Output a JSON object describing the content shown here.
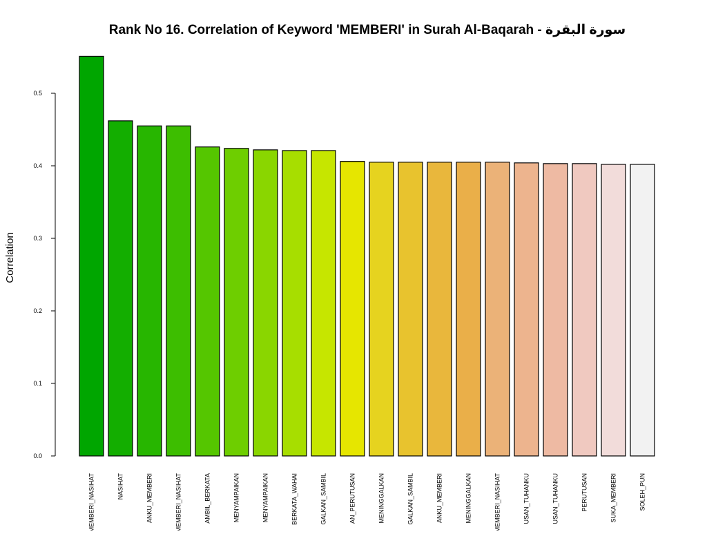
{
  "chart_data": {
    "type": "bar",
    "title": "Rank No 16. Correlation of Keyword 'MEMBERI' in Surah Al-Baqarah - سورة البقرة",
    "xlabel": "",
    "ylabel": "Correlation",
    "ylim": [
      0,
      0.55
    ],
    "yticks": [
      0.0,
      0.1,
      0.2,
      0.3,
      0.4,
      0.5
    ],
    "ytick_labels": [
      "0.0",
      "0.1",
      "0.2",
      "0.3",
      "0.4",
      "0.5"
    ],
    "grid": false,
    "categories": [
      "MEMBERI_NASIHAT",
      "NASIHAT",
      "ANKU_MEMBERI",
      "MEMBERI_NASIHAT",
      "AMBIL_BERKATA",
      "MENYAMPAIKAN",
      "MENYAMPAIKAN",
      "BERKATA_WAHAI",
      "GALKAN_SAMBIL",
      "AN_PERUTUSAN",
      "MENINGGALKAN",
      "GALKAN_SAMBIL",
      "ANKU_MEMBERI",
      "MENINGGALKAN",
      "MEMBERI_NASIHAT",
      "USAN_TUHANKU",
      "USAN_TUHANKU",
      "PERUTUSAN",
      "SUKA_MEMBERI",
      "SOLEH_PUN"
    ],
    "values": [
      0.551,
      0.462,
      0.455,
      0.455,
      0.426,
      0.424,
      0.422,
      0.421,
      0.421,
      0.406,
      0.405,
      0.405,
      0.405,
      0.405,
      0.405,
      0.404,
      0.403,
      0.403,
      0.402,
      0.402
    ],
    "colors": [
      "#00a600",
      "#13ae00",
      "#27b600",
      "#3dbe00",
      "#55c600",
      "#6ece00",
      "#8ad600",
      "#a7de00",
      "#c6e600",
      "#e6e600",
      "#e6d31f",
      "#e8c32e",
      "#e9b73c",
      "#eaaf49",
      "#ebb278",
      "#edb48e",
      "#eebaa3",
      "#f0c9c0",
      "#f2dcda",
      "#f2f2f2"
    ]
  }
}
